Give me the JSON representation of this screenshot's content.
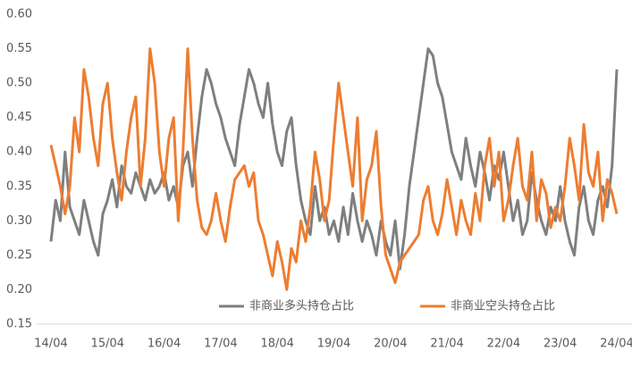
{
  "chart_data": {
    "type": "line",
    "categories": [
      "14/04",
      null,
      null,
      null,
      null,
      null,
      null,
      null,
      null,
      null,
      null,
      null,
      "15/04",
      null,
      null,
      null,
      null,
      null,
      null,
      null,
      null,
      null,
      null,
      null,
      "16/04",
      null,
      null,
      null,
      null,
      null,
      null,
      null,
      null,
      null,
      null,
      null,
      "17/04",
      null,
      null,
      null,
      null,
      null,
      null,
      null,
      null,
      null,
      null,
      null,
      "18/04",
      null,
      null,
      null,
      null,
      null,
      null,
      null,
      null,
      null,
      null,
      null,
      "19/04",
      null,
      null,
      null,
      null,
      null,
      null,
      null,
      null,
      null,
      null,
      null,
      "20/04",
      null,
      null,
      null,
      null,
      null,
      null,
      null,
      null,
      null,
      null,
      null,
      "21/04",
      null,
      null,
      null,
      null,
      null,
      null,
      null,
      null,
      null,
      null,
      null,
      "22/04",
      null,
      null,
      null,
      null,
      null,
      null,
      null,
      null,
      null,
      null,
      null,
      "23/04",
      null,
      null,
      null,
      null,
      null,
      null,
      null,
      null,
      null,
      null,
      null,
      "24/04"
    ],
    "series": [
      {
        "name": "非商业多头持仓占比",
        "color": "#7f7f7f",
        "values": [
          0.27,
          0.33,
          0.3,
          0.4,
          0.32,
          0.3,
          0.28,
          0.33,
          0.3,
          0.27,
          0.25,
          0.31,
          0.33,
          0.36,
          0.32,
          0.38,
          0.35,
          0.34,
          0.37,
          0.35,
          0.33,
          0.36,
          0.34,
          0.35,
          0.37,
          0.33,
          0.35,
          0.32,
          0.38,
          0.4,
          0.35,
          0.42,
          0.48,
          0.52,
          0.5,
          0.47,
          0.45,
          0.42,
          0.4,
          0.38,
          0.44,
          0.48,
          0.52,
          0.5,
          0.47,
          0.45,
          0.5,
          0.44,
          0.4,
          0.38,
          0.43,
          0.45,
          0.38,
          0.33,
          0.3,
          0.28,
          0.35,
          0.3,
          0.32,
          0.28,
          0.3,
          0.27,
          0.32,
          0.28,
          0.34,
          0.3,
          0.27,
          0.3,
          0.28,
          0.25,
          0.3,
          0.27,
          0.25,
          0.3,
          0.23,
          0.28,
          0.35,
          0.4,
          0.45,
          0.5,
          0.55,
          0.54,
          0.5,
          0.48,
          0.44,
          0.4,
          0.38,
          0.36,
          0.42,
          0.38,
          0.35,
          0.4,
          0.37,
          0.33,
          0.38,
          0.36,
          0.4,
          0.35,
          0.3,
          0.33,
          0.28,
          0.3,
          0.37,
          0.33,
          0.3,
          0.28,
          0.32,
          0.3,
          0.35,
          0.3,
          0.27,
          0.25,
          0.32,
          0.35,
          0.3,
          0.28,
          0.33,
          0.35,
          0.32,
          0.38,
          0.52
        ]
      },
      {
        "name": "非商业空头持仓占比",
        "color": "#ed7d31",
        "values": [
          0.41,
          0.38,
          0.35,
          0.31,
          0.35,
          0.45,
          0.4,
          0.52,
          0.48,
          0.42,
          0.38,
          0.47,
          0.5,
          0.42,
          0.37,
          0.33,
          0.4,
          0.45,
          0.48,
          0.35,
          0.42,
          0.55,
          0.5,
          0.4,
          0.35,
          0.42,
          0.45,
          0.3,
          0.4,
          0.55,
          0.42,
          0.33,
          0.29,
          0.28,
          0.3,
          0.34,
          0.3,
          0.27,
          0.32,
          0.36,
          0.37,
          0.38,
          0.35,
          0.37,
          0.3,
          0.28,
          0.25,
          0.22,
          0.27,
          0.24,
          0.2,
          0.26,
          0.24,
          0.3,
          0.27,
          0.32,
          0.4,
          0.36,
          0.3,
          0.33,
          0.42,
          0.5,
          0.45,
          0.4,
          0.35,
          0.45,
          0.3,
          0.36,
          0.38,
          0.43,
          0.32,
          0.25,
          0.23,
          0.21,
          0.24,
          0.25,
          0.26,
          0.27,
          0.28,
          0.33,
          0.35,
          0.3,
          0.28,
          0.31,
          0.36,
          0.32,
          0.28,
          0.33,
          0.3,
          0.28,
          0.34,
          0.3,
          0.38,
          0.42,
          0.35,
          0.4,
          0.3,
          0.33,
          0.38,
          0.42,
          0.35,
          0.33,
          0.4,
          0.3,
          0.36,
          0.34,
          0.29,
          0.32,
          0.3,
          0.35,
          0.42,
          0.38,
          0.33,
          0.44,
          0.37,
          0.35,
          0.4,
          0.3,
          0.36,
          0.34,
          0.31
        ]
      }
    ],
    "ylim": [
      0.15,
      0.6
    ],
    "yticks": [
      0.15,
      {
        "value": 0.2,
        "label": "0.20"
      },
      0.25,
      {
        "value": 0.3,
        "label": "0.30"
      },
      0.35,
      {
        "value": 0.4,
        "label": "0.40"
      },
      0.45,
      {
        "value": 0.5,
        "label": "0.50"
      },
      0.55,
      {
        "value": 0.6,
        "label": "0.60"
      }
    ],
    "grid": false,
    "legend": "bottom-right"
  }
}
